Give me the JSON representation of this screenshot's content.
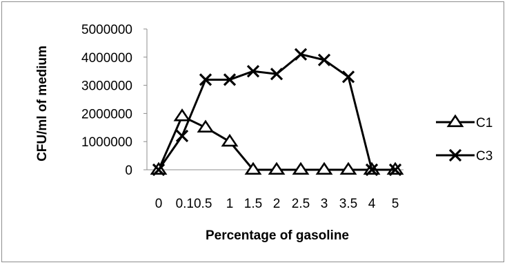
{
  "chart_data": {
    "type": "line",
    "x": [
      "0",
      "0.1",
      "0.5",
      "1",
      "1.5",
      "2",
      "2.5",
      "3",
      "3.5",
      "4",
      "5"
    ],
    "x_tick_labels": [
      "0",
      "0.10.5",
      "1",
      "1.5",
      "2",
      "2.5",
      "3",
      "3.5",
      "4",
      "5"
    ],
    "y_ticks": [
      "0",
      "1000000",
      "2000000",
      "3000000",
      "4000000",
      "5000000"
    ],
    "ylim": [
      0,
      5000000
    ],
    "xlabel": "Percentage of gasoline",
    "ylabel": "CFU/ml of medium",
    "legend_position": "right",
    "grid": false,
    "series": [
      {
        "name": "C1",
        "marker": "triangle",
        "color": "#000000",
        "values": [
          0,
          1900000,
          1500000,
          1000000,
          0,
          0,
          0,
          0,
          0,
          0,
          0
        ]
      },
      {
        "name": "C3",
        "marker": "x",
        "color": "#000000",
        "values": [
          0,
          1200000,
          3200000,
          3200000,
          3500000,
          3400000,
          4100000,
          3900000,
          3300000,
          0,
          0
        ]
      }
    ]
  }
}
